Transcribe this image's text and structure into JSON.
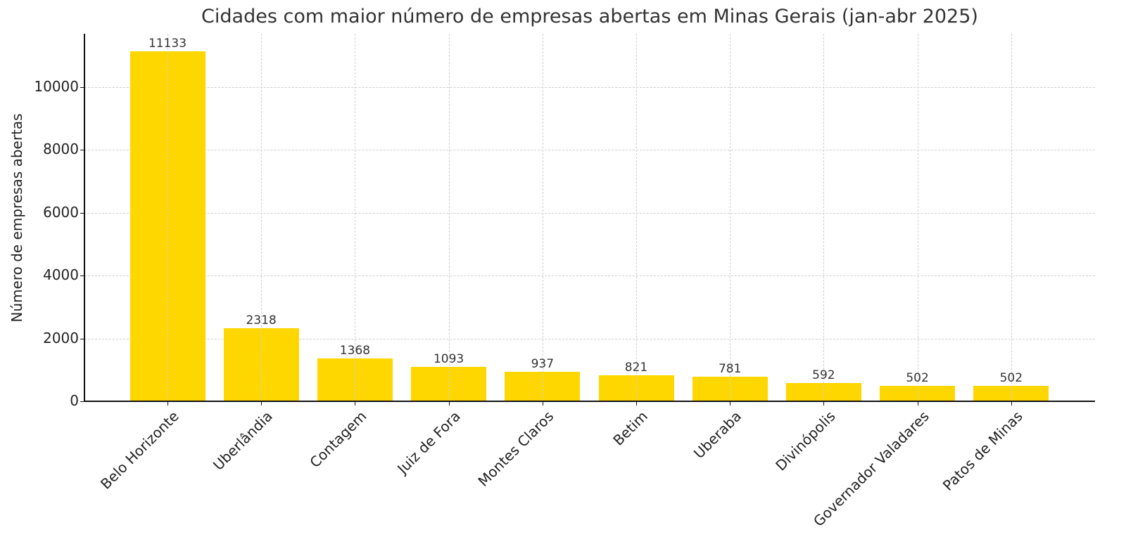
{
  "chart_data": {
    "type": "bar",
    "title": "Cidades com maior número de empresas abertas em Minas Gerais (jan-abr 2025)",
    "xlabel": "",
    "ylabel": "Número de empresas abertas",
    "categories": [
      "Belo Horizonte",
      "Uberlândia",
      "Contagem",
      "Juiz de Fora",
      "Montes Claros",
      "Betim",
      "Uberaba",
      "Divinópolis",
      "Governador Valadares",
      "Patos de Minas"
    ],
    "values": [
      11133,
      2318,
      1368,
      1093,
      937,
      821,
      781,
      592,
      502,
      502
    ],
    "data_labels": [
      "11133",
      "2318",
      "1368",
      "1093",
      "937",
      "821",
      "781",
      "592",
      "502",
      "502"
    ],
    "yticks": [
      0,
      2000,
      4000,
      6000,
      8000,
      10000
    ],
    "ytick_labels": [
      "0",
      "2000",
      "4000",
      "6000",
      "8000",
      "10000"
    ],
    "ylim": [
      0,
      11690
    ],
    "grid": true,
    "grid_style": "dashed",
    "legend": null,
    "bar_color": "#FFD700",
    "xtick_rotation": 45
  }
}
